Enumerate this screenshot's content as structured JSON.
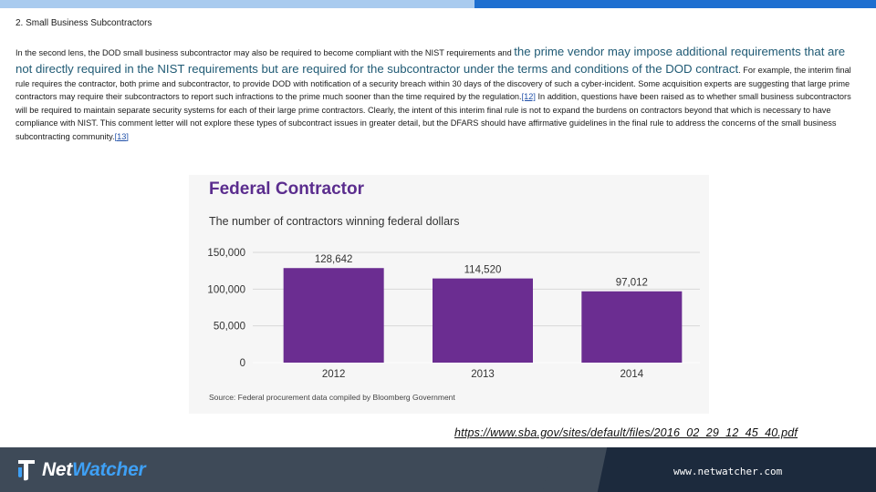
{
  "header": {
    "section_title": "2. Small Business Subcontractors"
  },
  "paragraph": {
    "part1": "In the second lens, the DOD small business subcontractor may also be required to become compliant with the NIST requirements and ",
    "emphasis": "the prime vendor may impose additional requirements that are not directly required in the NIST requirements but are required for the subcontractor under the terms and conditions of the DOD contract",
    "part2": ".  For example, the interim final rule requires the contractor, both prime and subcontractor, to provide DOD with notification of a security breach within 30 days of the discovery of such a cyber-incident. Some acquisition experts are suggesting that large prime contractors may require their subcontractors to report such infractions to the prime much sooner than the time required by the regulation.",
    "ref1": "[12]",
    "part3": " In addition, questions have been raised as to whether small business subcontractors will be required to maintain separate security systems for each of their large prime contractors.  Clearly, the intent of this interim final rule is not to expand the burdens on contractors beyond that which is necessary to have compliance with NIST.  This comment letter will not explore these types of subcontract issues in greater detail, but the DFARS should have affirmative guidelines in the final rule to address the concerns of the small business subcontracting community.",
    "ref2": "[13]"
  },
  "chart_data": {
    "type": "bar",
    "title": "Federal Contractor",
    "subtitle": "The number of contractors winning federal dollars",
    "categories": [
      "2012",
      "2013",
      "2014"
    ],
    "values": [
      128642,
      114520,
      97012
    ],
    "value_labels": [
      "128,642",
      "114,520",
      "97,012"
    ],
    "yticks": [
      0,
      50000,
      100000,
      150000
    ],
    "ytick_labels": [
      "0",
      "50,000",
      "100,000",
      "150,000"
    ],
    "ylim": [
      0,
      150000
    ],
    "xlabel": "",
    "ylabel": "",
    "grid": true,
    "bar_color": "#6b2d91",
    "title_color": "#5b2d8e",
    "source": "Source: Federal procurement data compiled by Bloomberg Government"
  },
  "source_link": "https://www.sba.gov/sites/default/files/2016_02_29_12_45_40.pdf",
  "footer": {
    "brand_part1": "Net",
    "brand_part2": "Watcher",
    "website": "www.netwatcher.com",
    "accent_color": "#3ea0f5"
  }
}
